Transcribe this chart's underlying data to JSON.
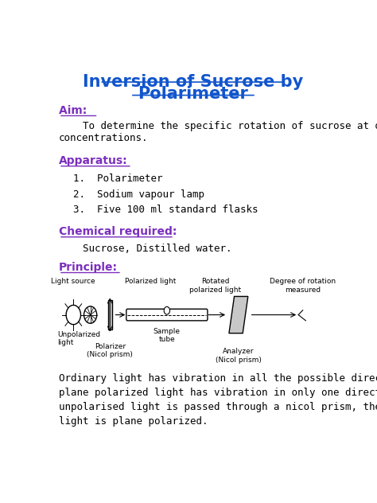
{
  "title_line1": "Inversion of Sucrose by",
  "title_line2": "Polarimeter",
  "title_color": "#1155CC",
  "title_fontsize": 15,
  "section_color": "#7B2FBE",
  "aim_label": "Aim: ",
  "aim_text": "    To determine the specific rotation of sucrose at different\nconcentrations.",
  "apparatus_label": "Apparatus:",
  "apparatus_items": [
    "Polarimeter",
    "Sodium vapour lamp",
    "Five 100 ml standard flasks"
  ],
  "chemical_label": "Chemical required:",
  "chemical_text": "    Sucrose, Distilled water.",
  "principle_label": "Principle:",
  "principle_text": "Ordinary light has vibration in all the possible directions, whereas\nplane polarized light has vibration in only one direction. If an\nunpolarised light is passed through a nicol prism, the emerging\nlight is plane polarized.",
  "body_fontsize": 9,
  "section_fontsize": 10,
  "bg_color": "#ffffff",
  "text_color": "#000000",
  "label_fontsize": 6.5
}
